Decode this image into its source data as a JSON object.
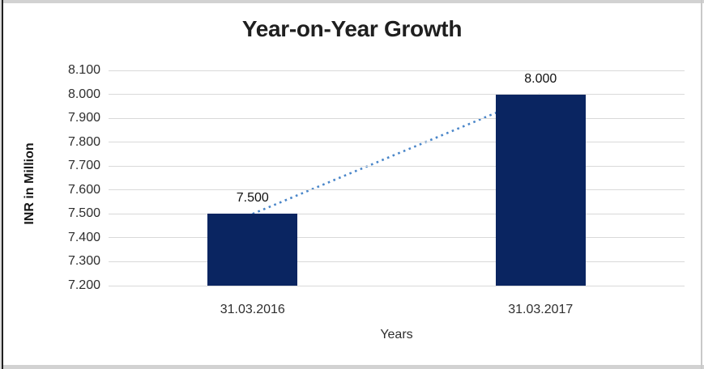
{
  "chart_data": {
    "type": "bar",
    "title": "Year-on-Year Growth",
    "ylabel": "INR in Million",
    "xlabel": "Years",
    "categories": [
      "31.03.2016",
      "31.03.2017"
    ],
    "values": [
      7.5,
      8.0
    ],
    "value_labels": [
      "7.500",
      "8.000"
    ],
    "yticks": [
      "8.100",
      "8.000",
      "7.900",
      "7.800",
      "7.700",
      "7.600",
      "7.500",
      "7.400",
      "7.300",
      "7.200"
    ],
    "ylim": [
      7.2,
      8.1
    ],
    "ytick_step": 0.1,
    "grid": true,
    "legend": false,
    "trendline": {
      "style": "dotted",
      "from_value": 7.5,
      "to_value": 8.0
    },
    "colors": {
      "bar": "#0a2561",
      "trendline": "#4a86c9",
      "gridline": "#d9d9d9",
      "title_text": "#1f1f1f",
      "axis_text": "#2e2e2e",
      "label_text": "#101010"
    }
  }
}
